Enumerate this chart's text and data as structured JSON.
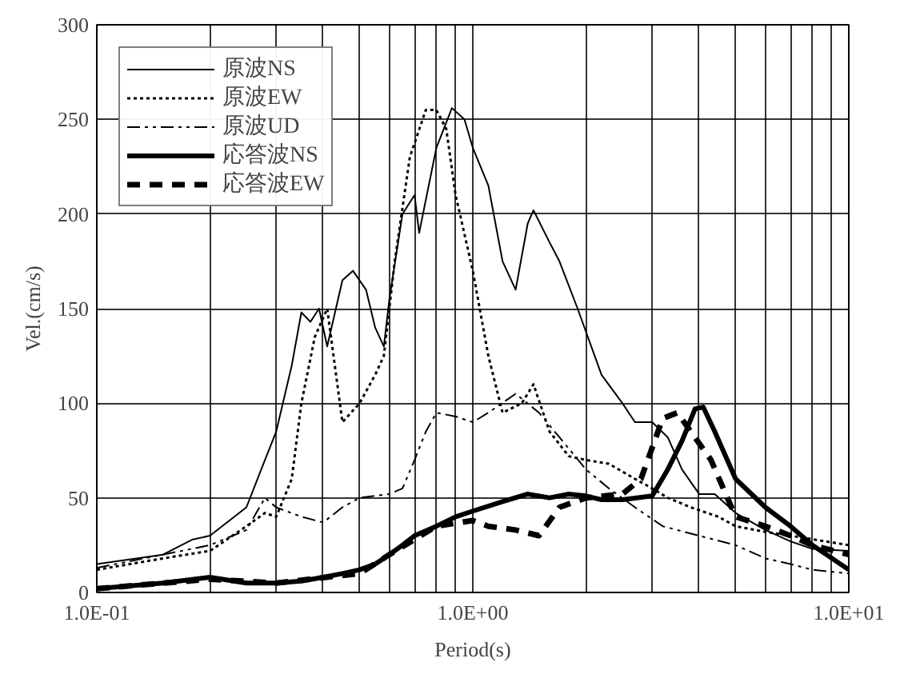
{
  "chart_data": {
    "type": "line",
    "xlabel": "Period(s)",
    "ylabel": "Vel.(cm/s)",
    "log": "x",
    "grid": true,
    "legend": "top left",
    "xlim": [
      0.1,
      10
    ],
    "ylim": [
      0,
      300
    ],
    "xticks": [
      {
        "value": 0.1,
        "label": "1.0E-01"
      },
      {
        "value": 0.2,
        "label": null
      },
      {
        "value": 0.3,
        "label": null
      },
      {
        "value": 0.4,
        "label": null
      },
      {
        "value": 0.5,
        "label": null
      },
      {
        "value": 0.6,
        "label": null
      },
      {
        "value": 0.7,
        "label": null
      },
      {
        "value": 0.8,
        "label": null
      },
      {
        "value": 0.9,
        "label": null
      },
      {
        "value": 1,
        "label": "1.0E+00"
      },
      {
        "value": 2,
        "label": null
      },
      {
        "value": 3,
        "label": null
      },
      {
        "value": 4,
        "label": null
      },
      {
        "value": 5,
        "label": null
      },
      {
        "value": 6,
        "label": null
      },
      {
        "value": 7,
        "label": null
      },
      {
        "value": 8,
        "label": null
      },
      {
        "value": 9,
        "label": null
      },
      {
        "value": 10,
        "label": "1.0E+01"
      }
    ],
    "yticks": [
      0,
      50,
      100,
      150,
      200,
      250,
      300
    ],
    "series": [
      {
        "name": "原波NS",
        "color": "#000000",
        "line_style": "solid",
        "x": [
          0.1,
          0.15,
          0.18,
          0.2,
          0.25,
          0.28,
          0.3,
          0.33,
          0.35,
          0.37,
          0.39,
          0.41,
          0.45,
          0.48,
          0.52,
          0.55,
          0.58,
          0.6,
          0.65,
          0.7,
          0.72,
          0.8,
          0.88,
          0.95,
          1.0,
          1.1,
          1.2,
          1.3,
          1.4,
          1.45,
          1.6,
          1.7,
          1.9,
          2.2,
          2.5,
          2.7,
          3.0,
          3.3,
          3.6,
          4.0,
          4.4,
          5,
          6,
          7,
          8,
          10
        ],
        "values": [
          15,
          20,
          28,
          30,
          45,
          70,
          85,
          120,
          148,
          143,
          150,
          130,
          165,
          170,
          160,
          140,
          130,
          155,
          200,
          210,
          190,
          235,
          256,
          250,
          235,
          215,
          175,
          160,
          195,
          202,
          185,
          175,
          150,
          115,
          100,
          90,
          90,
          82,
          65,
          52,
          52,
          42,
          33,
          27,
          23,
          22
        ]
      },
      {
        "name": "原波EW",
        "color": "#000000",
        "line_style": "dotted",
        "x": [
          0.1,
          0.15,
          0.2,
          0.25,
          0.28,
          0.3,
          0.33,
          0.35,
          0.38,
          0.41,
          0.45,
          0.5,
          0.55,
          0.58,
          0.62,
          0.68,
          0.75,
          0.8,
          0.85,
          0.9,
          1.0,
          1.1,
          1.2,
          1.35,
          1.45,
          1.6,
          1.8,
          2.0,
          2.3,
          2.7,
          3.0,
          3.3,
          3.8,
          4.5,
          5,
          6,
          7,
          10
        ],
        "values": [
          12,
          18,
          22,
          35,
          42,
          40,
          60,
          100,
          135,
          150,
          90,
          100,
          115,
          125,
          175,
          230,
          255,
          255,
          245,
          210,
          170,
          125,
          95,
          100,
          110,
          85,
          72,
          70,
          68,
          60,
          55,
          50,
          45,
          40,
          35,
          32,
          30,
          25
        ]
      },
      {
        "name": "原波UD",
        "color": "#000000",
        "line_style": "dashdot",
        "x": [
          0.1,
          0.15,
          0.2,
          0.25,
          0.28,
          0.3,
          0.35,
          0.4,
          0.45,
          0.5,
          0.6,
          0.65,
          0.7,
          0.75,
          0.8,
          0.9,
          1.0,
          1.1,
          1.3,
          1.5,
          1.7,
          2.0,
          2.3,
          2.7,
          3.2,
          4,
          5,
          6,
          7,
          8,
          10
        ],
        "values": [
          13,
          20,
          25,
          33,
          50,
          45,
          40,
          37,
          45,
          50,
          52,
          55,
          70,
          85,
          95,
          93,
          90,
          95,
          105,
          95,
          82,
          65,
          55,
          45,
          35,
          30,
          25,
          18,
          15,
          12,
          10
        ]
      },
      {
        "name": "応答波NS",
        "color": "#000000",
        "line_style": "solid",
        "x": [
          0.1,
          0.15,
          0.2,
          0.25,
          0.3,
          0.35,
          0.4,
          0.45,
          0.5,
          0.55,
          0.6,
          0.65,
          0.7,
          0.8,
          0.9,
          1.0,
          1.2,
          1.4,
          1.6,
          1.8,
          2.0,
          2.2,
          2.5,
          3.0,
          3.3,
          3.6,
          3.9,
          4.1,
          4.4,
          5,
          6,
          7,
          8,
          10
        ],
        "values": [
          2,
          5,
          8,
          5,
          5,
          6,
          8,
          10,
          12,
          15,
          20,
          25,
          30,
          35,
          40,
          43,
          48,
          52,
          50,
          52,
          51,
          49,
          49,
          51,
          65,
          80,
          97,
          98,
          85,
          60,
          45,
          35,
          25,
          12
        ]
      },
      {
        "name": "応答波EW",
        "color": "#000000",
        "line_style": "dashed",
        "x": [
          0.1,
          0.2,
          0.3,
          0.5,
          0.6,
          0.8,
          1.0,
          1.1,
          1.3,
          1.5,
          1.7,
          2.0,
          2.5,
          2.8,
          3.2,
          3.5,
          3.8,
          4.3,
          5,
          6,
          7,
          8,
          10
        ],
        "values": [
          2,
          7,
          5,
          10,
          20,
          35,
          38,
          35,
          33,
          30,
          45,
          50,
          52,
          60,
          92,
          95,
          85,
          70,
          40,
          35,
          30,
          25,
          20
        ]
      }
    ]
  }
}
